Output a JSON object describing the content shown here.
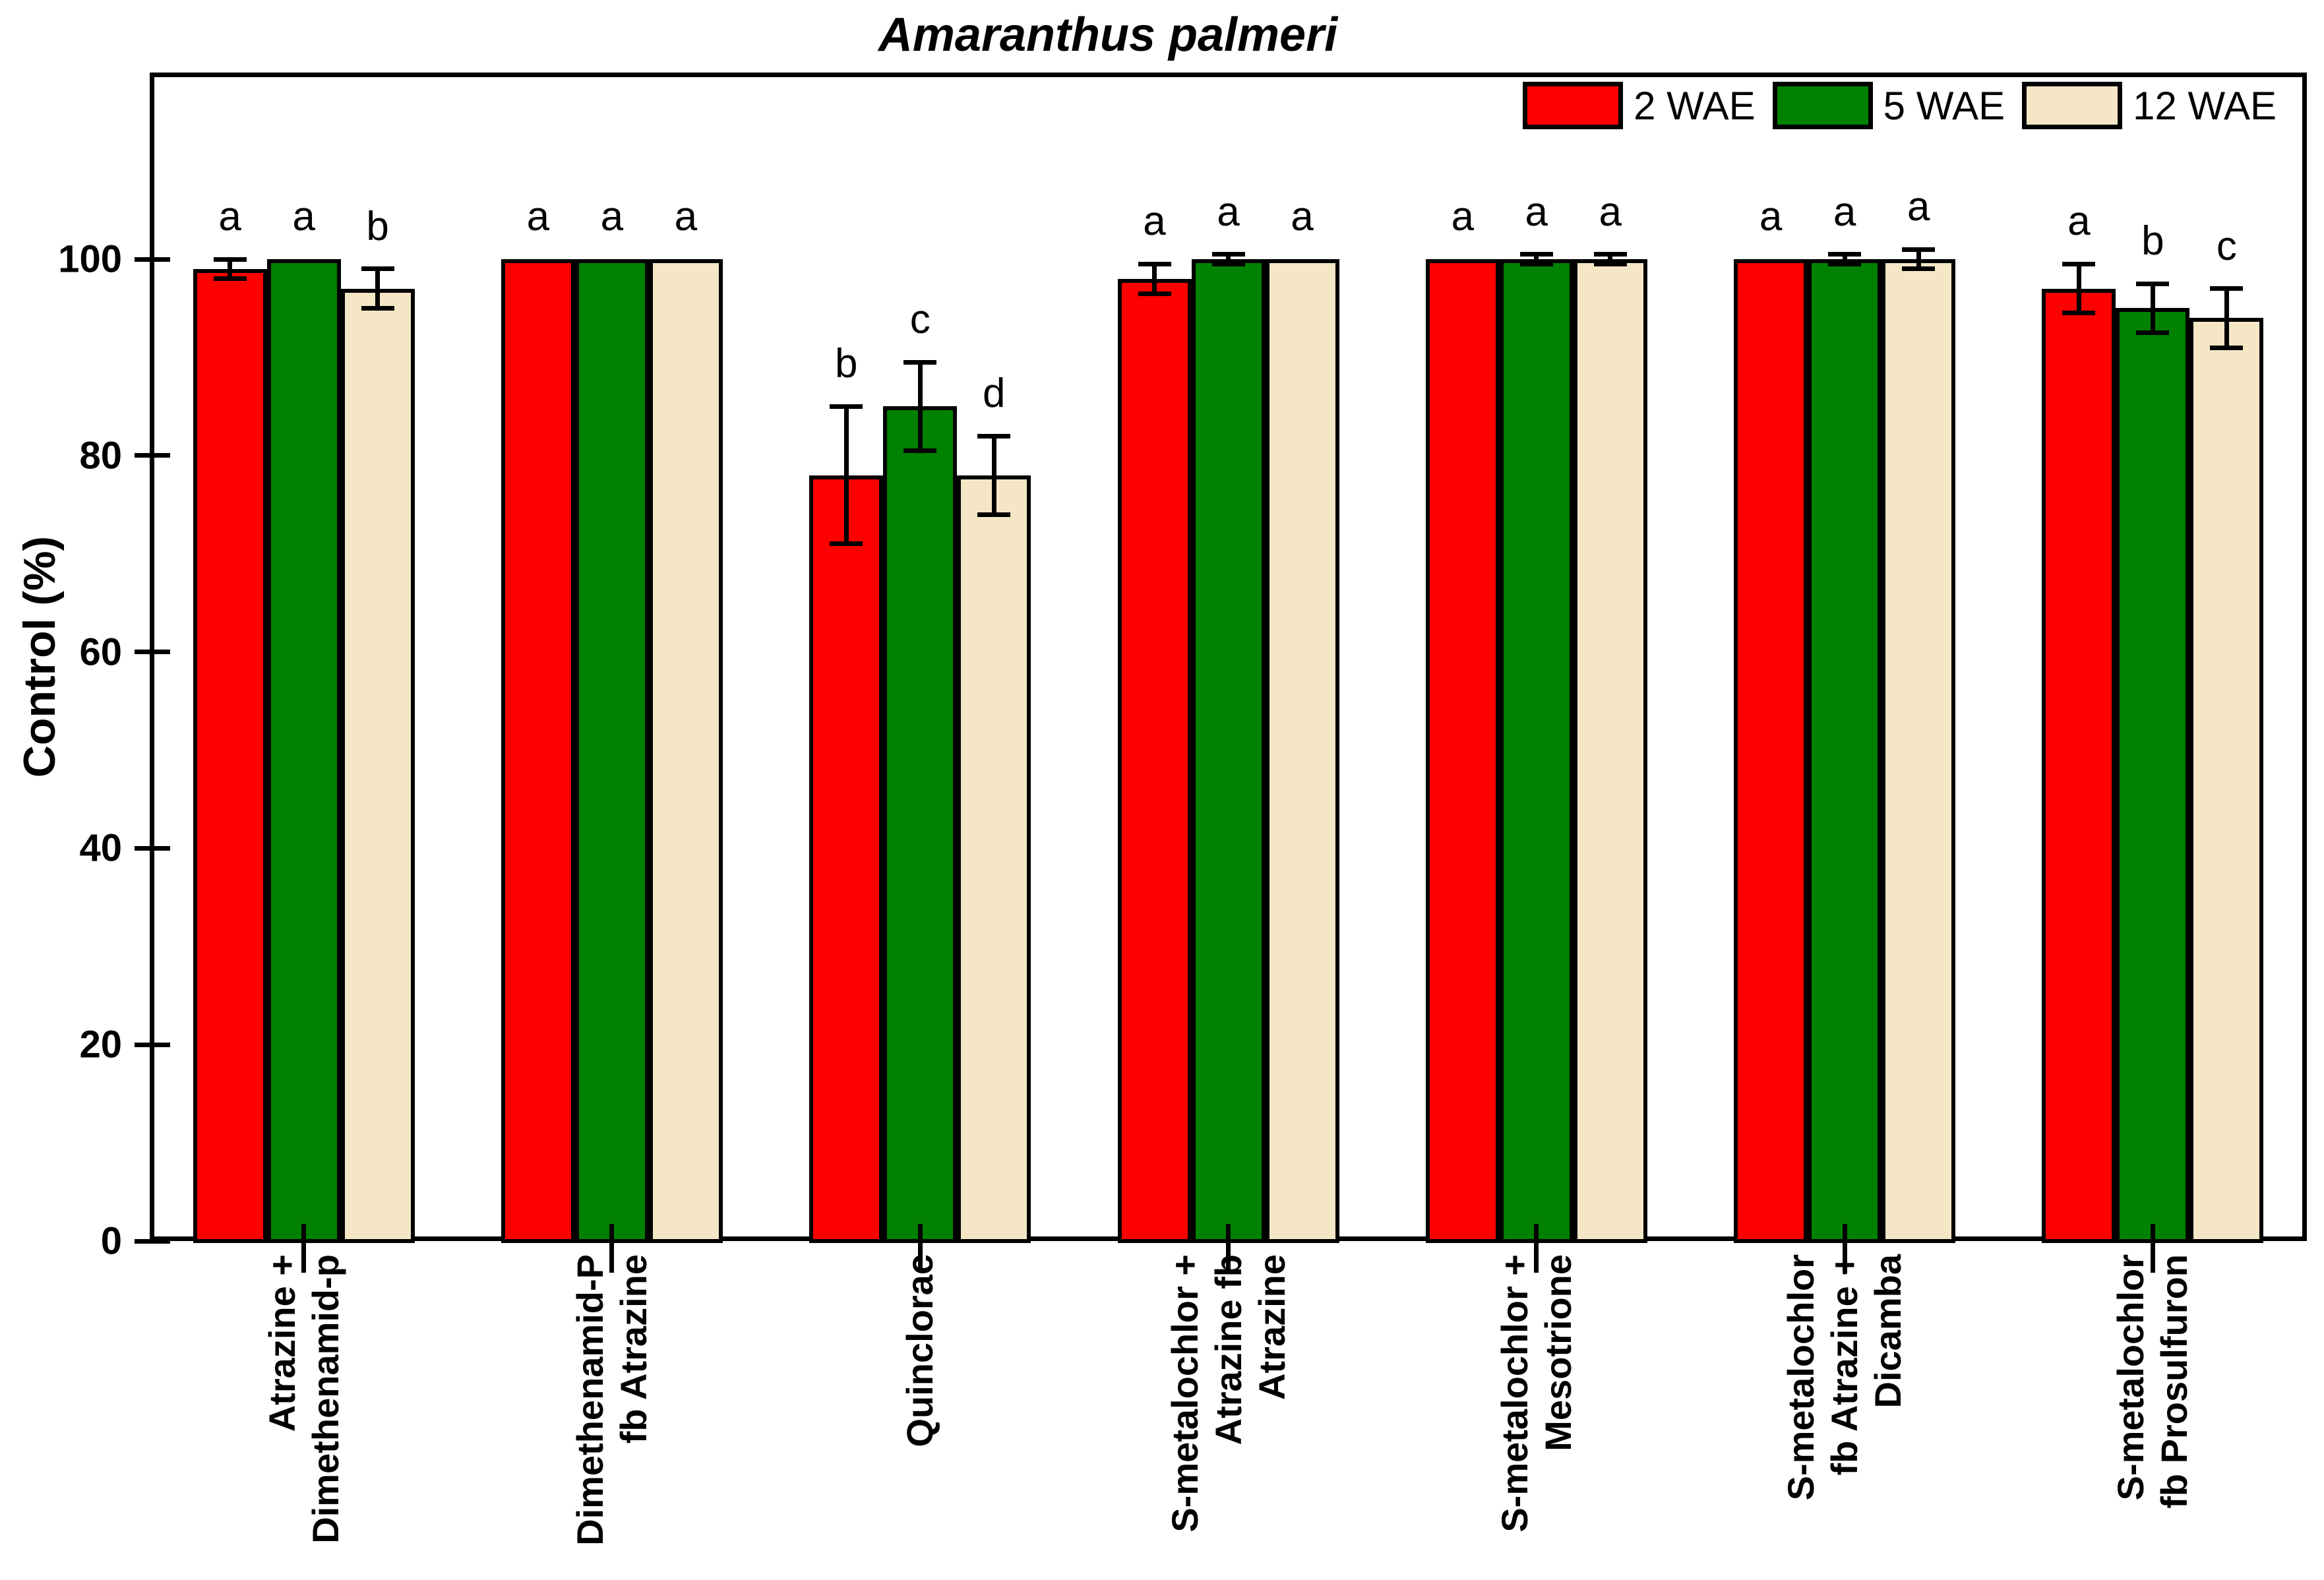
{
  "title": "Amaranthus palmeri",
  "legend": {
    "items": [
      {
        "label": "2 WAE",
        "color": "#fe0000"
      },
      {
        "label": "5 WAE",
        "color": "#018101"
      },
      {
        "label": "12 WAE",
        "color": "#f5e7c6"
      }
    ]
  },
  "chart_data": {
    "type": "bar",
    "title": "Amaranthus palmeri",
    "xlabel": "",
    "ylabel": "Control (%)",
    "ylim": [
      0,
      119
    ],
    "yticks": [
      0,
      20,
      40,
      60,
      80,
      100
    ],
    "grid": false,
    "legend_position": "top-right-inside",
    "categories": [
      "Atrazine +\nDimethenamid-p",
      "Dimethenamid-P\nfb Atrazine",
      "Quinclorac",
      "S-metalochlor +\nAtrazine fb\nAtrazine",
      "S-metalochlor +\nMesotrione",
      "S-metalochlor\nfb Atrazine +\nDicamba",
      "S-metalochlor\nfb Prosulfuron"
    ],
    "series": [
      {
        "name": "2 WAE",
        "color": "#fe0000",
        "values": [
          99,
          100,
          78,
          98,
          100,
          100,
          97
        ],
        "errors": [
          1,
          0,
          7,
          1.5,
          0,
          0,
          2.5
        ],
        "letters": [
          "a",
          "a",
          "b",
          "a",
          "a",
          "a",
          "a"
        ]
      },
      {
        "name": "5 WAE",
        "color": "#018101",
        "values": [
          100,
          100,
          85,
          100,
          100,
          100,
          95
        ],
        "errors": [
          0,
          0,
          4.5,
          0.5,
          0.5,
          0.5,
          2.5
        ],
        "letters": [
          "a",
          "a",
          "c",
          "a",
          "a",
          "a",
          "b"
        ]
      },
      {
        "name": "12 WAE",
        "color": "#f5e7c6",
        "values": [
          97,
          100,
          78,
          100,
          100,
          100,
          94
        ],
        "errors": [
          2,
          0,
          4,
          0,
          0.5,
          1,
          3
        ],
        "letters": [
          "b",
          "a",
          "d",
          "a",
          "a",
          "a",
          "c"
        ]
      }
    ]
  }
}
